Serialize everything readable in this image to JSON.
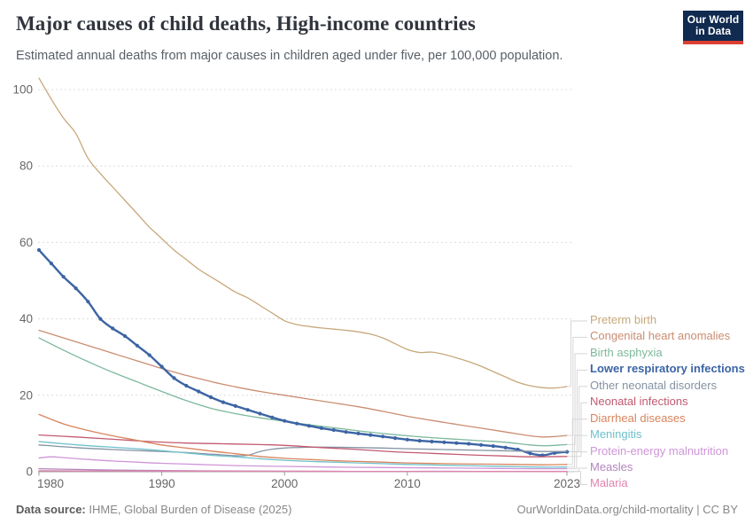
{
  "header": {
    "title": "Major causes of child deaths, High-income countries",
    "subtitle": "Estimated annual deaths from major causes in children aged under five, per 100,000 population.",
    "logo_line1": "Our World",
    "logo_line2": "in Data"
  },
  "footer": {
    "source_label": "Data source:",
    "source_text": " IHME, Global Burden of Disease (2025)",
    "right": "OurWorldinData.org/child-mortality | CC BY"
  },
  "chart_data": {
    "type": "line",
    "title": "Major causes of child deaths, High-income countries",
    "subtitle": "Estimated annual deaths from major causes in children aged under five, per 100,000 population.",
    "xlabel": "",
    "ylabel": "",
    "x_range": [
      1980,
      2023
    ],
    "y_range": [
      0,
      105
    ],
    "x_ticks": [
      1980,
      1990,
      2000,
      2010,
      2023
    ],
    "y_ticks": [
      0,
      20,
      40,
      60,
      80,
      100
    ],
    "grid": true,
    "legend_position": "right",
    "axis_color": "#9b9b9b",
    "grid_color": "#dcdcdc",
    "tick_label_color": "#666666",
    "connector_color": "#d6d6d6",
    "series": [
      {
        "name": "Preterm birth",
        "color": "#c7a87b",
        "bold": false,
        "markers": false,
        "points": [
          [
            1980,
            103
          ],
          [
            1981,
            97.5
          ],
          [
            1982,
            92.5
          ],
          [
            1983,
            88.5
          ],
          [
            1984,
            82
          ],
          [
            1985,
            78
          ],
          [
            1986,
            74.5
          ],
          [
            1987,
            71
          ],
          [
            1988,
            67.5
          ],
          [
            1989,
            64
          ],
          [
            1990,
            61
          ],
          [
            1991,
            58
          ],
          [
            1992,
            55.5
          ],
          [
            1993,
            53
          ],
          [
            1994,
            51
          ],
          [
            1995,
            49
          ],
          [
            1996,
            47
          ],
          [
            1997,
            45.5
          ],
          [
            1998,
            43.5
          ],
          [
            1999,
            41.5
          ],
          [
            2000,
            39.5
          ],
          [
            2001,
            38.5
          ],
          [
            2002,
            38
          ],
          [
            2003,
            37.6
          ],
          [
            2004,
            37.3
          ],
          [
            2005,
            37
          ],
          [
            2006,
            36.6
          ],
          [
            2007,
            36
          ],
          [
            2008,
            35
          ],
          [
            2009,
            33.5
          ],
          [
            2010,
            32
          ],
          [
            2011,
            31.2
          ],
          [
            2012,
            31.3
          ],
          [
            2013,
            30.7
          ],
          [
            2014,
            29.8
          ],
          [
            2015,
            28.8
          ],
          [
            2016,
            27.6
          ],
          [
            2017,
            26.2
          ],
          [
            2018,
            24.8
          ],
          [
            2019,
            23.4
          ],
          [
            2020,
            22.5
          ],
          [
            2021,
            22
          ],
          [
            2022,
            21.9
          ],
          [
            2023,
            22.3
          ]
        ]
      },
      {
        "name": "Congenital heart anomalies",
        "color": "#ca8d72",
        "bold": false,
        "markers": false,
        "points": [
          [
            1980,
            37
          ],
          [
            1982,
            35
          ],
          [
            1984,
            33
          ],
          [
            1986,
            31
          ],
          [
            1988,
            29
          ],
          [
            1990,
            27
          ],
          [
            1992,
            25.2
          ],
          [
            1994,
            23.6
          ],
          [
            1996,
            22.2
          ],
          [
            1998,
            21
          ],
          [
            2000,
            20
          ],
          [
            2002,
            19
          ],
          [
            2004,
            18
          ],
          [
            2006,
            17
          ],
          [
            2008,
            15.8
          ],
          [
            2010,
            14.5
          ],
          [
            2012,
            13.4
          ],
          [
            2014,
            12.4
          ],
          [
            2016,
            11.4
          ],
          [
            2018,
            10.4
          ],
          [
            2020,
            9.4
          ],
          [
            2021,
            9.1
          ],
          [
            2022,
            9.2
          ],
          [
            2023,
            9.5
          ]
        ]
      },
      {
        "name": "Birth asphyxia",
        "color": "#7db89c",
        "bold": false,
        "markers": false,
        "points": [
          [
            1980,
            35
          ],
          [
            1982,
            31.8
          ],
          [
            1984,
            28.8
          ],
          [
            1986,
            26
          ],
          [
            1988,
            23.5
          ],
          [
            1990,
            21
          ],
          [
            1992,
            18.6
          ],
          [
            1994,
            16.6
          ],
          [
            1996,
            15.2
          ],
          [
            1998,
            14.1
          ],
          [
            2000,
            13.2
          ],
          [
            2002,
            12.3
          ],
          [
            2004,
            11.5
          ],
          [
            2006,
            10.7
          ],
          [
            2008,
            10
          ],
          [
            2010,
            9.4
          ],
          [
            2012,
            8.9
          ],
          [
            2014,
            8.5
          ],
          [
            2016,
            8.1
          ],
          [
            2018,
            7.7
          ],
          [
            2020,
            7
          ],
          [
            2021,
            6.8
          ],
          [
            2022,
            6.9
          ],
          [
            2023,
            7.1
          ]
        ]
      },
      {
        "name": "Lower respiratory infections",
        "color": "#3c64a4",
        "bold": true,
        "markers": true,
        "points": [
          [
            1980,
            58
          ],
          [
            1981,
            54.5
          ],
          [
            1982,
            51
          ],
          [
            1983,
            48
          ],
          [
            1984,
            44.5
          ],
          [
            1985,
            40
          ],
          [
            1986,
            37.5
          ],
          [
            1987,
            35.5
          ],
          [
            1988,
            33
          ],
          [
            1989,
            30.5
          ],
          [
            1990,
            27.5
          ],
          [
            1991,
            24.5
          ],
          [
            1992,
            22.5
          ],
          [
            1993,
            21
          ],
          [
            1994,
            19.5
          ],
          [
            1995,
            18.2
          ],
          [
            1996,
            17.2
          ],
          [
            1997,
            16.2
          ],
          [
            1998,
            15.2
          ],
          [
            1999,
            14.2
          ],
          [
            2000,
            13.3
          ],
          [
            2001,
            12.6
          ],
          [
            2002,
            12
          ],
          [
            2003,
            11.4
          ],
          [
            2004,
            10.9
          ],
          [
            2005,
            10.4
          ],
          [
            2006,
            10
          ],
          [
            2007,
            9.6
          ],
          [
            2008,
            9.2
          ],
          [
            2009,
            8.8
          ],
          [
            2010,
            8.4
          ],
          [
            2011,
            8.1
          ],
          [
            2012,
            7.9
          ],
          [
            2013,
            7.7
          ],
          [
            2014,
            7.5
          ],
          [
            2015,
            7.3
          ],
          [
            2016,
            7
          ],
          [
            2017,
            6.7
          ],
          [
            2018,
            6.3
          ],
          [
            2019,
            5.8
          ],
          [
            2020,
            4.8
          ],
          [
            2021,
            4.3
          ],
          [
            2022,
            4.9
          ],
          [
            2023,
            5.2
          ]
        ]
      },
      {
        "name": "Other neonatal disorders",
        "color": "#8493a3",
        "bold": false,
        "markers": false,
        "points": [
          [
            1980,
            7
          ],
          [
            1983,
            6.3
          ],
          [
            1986,
            5.8
          ],
          [
            1989,
            5.4
          ],
          [
            1992,
            5
          ],
          [
            1994,
            4.6
          ],
          [
            1996,
            4.2
          ],
          [
            1997,
            4.3
          ],
          [
            1998,
            5.3
          ],
          [
            1999,
            5.9
          ],
          [
            2000,
            6.2
          ],
          [
            2002,
            6.4
          ],
          [
            2004,
            6.4
          ],
          [
            2006,
            6.3
          ],
          [
            2008,
            6.2
          ],
          [
            2010,
            6
          ],
          [
            2013,
            5.8
          ],
          [
            2016,
            5.6
          ],
          [
            2019,
            5.4
          ],
          [
            2021,
            5.3
          ],
          [
            2023,
            5.3
          ]
        ]
      },
      {
        "name": "Neonatal infections",
        "color": "#c25a72",
        "bold": false,
        "markers": false,
        "points": [
          [
            1980,
            9.6
          ],
          [
            1983,
            9.1
          ],
          [
            1986,
            8.5
          ],
          [
            1989,
            7.9
          ],
          [
            1992,
            7.5
          ],
          [
            1995,
            7.3
          ],
          [
            1998,
            7.1
          ],
          [
            2000,
            6.9
          ],
          [
            2003,
            6.3
          ],
          [
            2006,
            5.8
          ],
          [
            2009,
            5.2
          ],
          [
            2012,
            4.8
          ],
          [
            2015,
            4.4
          ],
          [
            2018,
            4.1
          ],
          [
            2020,
            3.9
          ],
          [
            2023,
            4
          ]
        ]
      },
      {
        "name": "Diarrheal diseases",
        "color": "#d8845c",
        "bold": false,
        "markers": false,
        "points": [
          [
            1980,
            15
          ],
          [
            1982,
            12.5
          ],
          [
            1984,
            10.8
          ],
          [
            1986,
            9.4
          ],
          [
            1988,
            8.2
          ],
          [
            1990,
            7
          ],
          [
            1992,
            6.2
          ],
          [
            1994,
            5.4
          ],
          [
            1996,
            4.7
          ],
          [
            1998,
            4
          ],
          [
            2000,
            3.5
          ],
          [
            2002,
            3.2
          ],
          [
            2004,
            2.9
          ],
          [
            2006,
            2.7
          ],
          [
            2008,
            2.5
          ],
          [
            2010,
            2.3
          ],
          [
            2013,
            2.1
          ],
          [
            2016,
            2
          ],
          [
            2019,
            1.9
          ],
          [
            2021,
            1.8
          ],
          [
            2023,
            1.9
          ]
        ]
      },
      {
        "name": "Meningitis",
        "color": "#6fc0cc",
        "bold": false,
        "markers": false,
        "points": [
          [
            1980,
            7.9
          ],
          [
            1982,
            7.3
          ],
          [
            1984,
            6.8
          ],
          [
            1986,
            6.4
          ],
          [
            1988,
            6
          ],
          [
            1990,
            5.5
          ],
          [
            1992,
            4.9
          ],
          [
            1994,
            4.3
          ],
          [
            1996,
            3.9
          ],
          [
            1998,
            3.4
          ],
          [
            2000,
            3
          ],
          [
            2002,
            2.7
          ],
          [
            2004,
            2.5
          ],
          [
            2006,
            2.3
          ],
          [
            2008,
            2.1
          ],
          [
            2010,
            1.9
          ],
          [
            2013,
            1.7
          ],
          [
            2016,
            1.5
          ],
          [
            2019,
            1.3
          ],
          [
            2021,
            1.2
          ],
          [
            2023,
            1.2
          ]
        ]
      },
      {
        "name": "Protein-energy malnutrition",
        "color": "#cf95d8",
        "bold": false,
        "markers": false,
        "points": [
          [
            1980,
            3.6
          ],
          [
            1981,
            3.9
          ],
          [
            1982,
            3.7
          ],
          [
            1984,
            3.2
          ],
          [
            1986,
            2.8
          ],
          [
            1988,
            2.5
          ],
          [
            1990,
            2.2
          ],
          [
            1993,
            1.9
          ],
          [
            1996,
            1.6
          ],
          [
            2000,
            1.4
          ],
          [
            2004,
            1.2
          ],
          [
            2008,
            1.1
          ],
          [
            2012,
            1
          ],
          [
            2016,
            0.9
          ],
          [
            2020,
            0.8
          ],
          [
            2023,
            0.8
          ]
        ]
      },
      {
        "name": "Measles",
        "color": "#b285bd",
        "bold": false,
        "markers": false,
        "points": [
          [
            1980,
            0.8
          ],
          [
            1983,
            0.6
          ],
          [
            1986,
            0.45
          ],
          [
            1990,
            0.3
          ],
          [
            1995,
            0.2
          ],
          [
            2000,
            0.15
          ],
          [
            2005,
            0.1
          ],
          [
            2010,
            0.1
          ],
          [
            2015,
            0.1
          ],
          [
            2020,
            0.05
          ],
          [
            2023,
            0.05
          ]
        ]
      },
      {
        "name": "Malaria",
        "color": "#e084ad",
        "bold": false,
        "markers": false,
        "points": [
          [
            1980,
            0.25
          ],
          [
            1985,
            0.2
          ],
          [
            1990,
            0.18
          ],
          [
            1995,
            0.15
          ],
          [
            2000,
            0.12
          ],
          [
            2005,
            0.1
          ],
          [
            2010,
            0.1
          ],
          [
            2015,
            0.08
          ],
          [
            2020,
            0.06
          ],
          [
            2023,
            0.05
          ]
        ]
      }
    ]
  }
}
